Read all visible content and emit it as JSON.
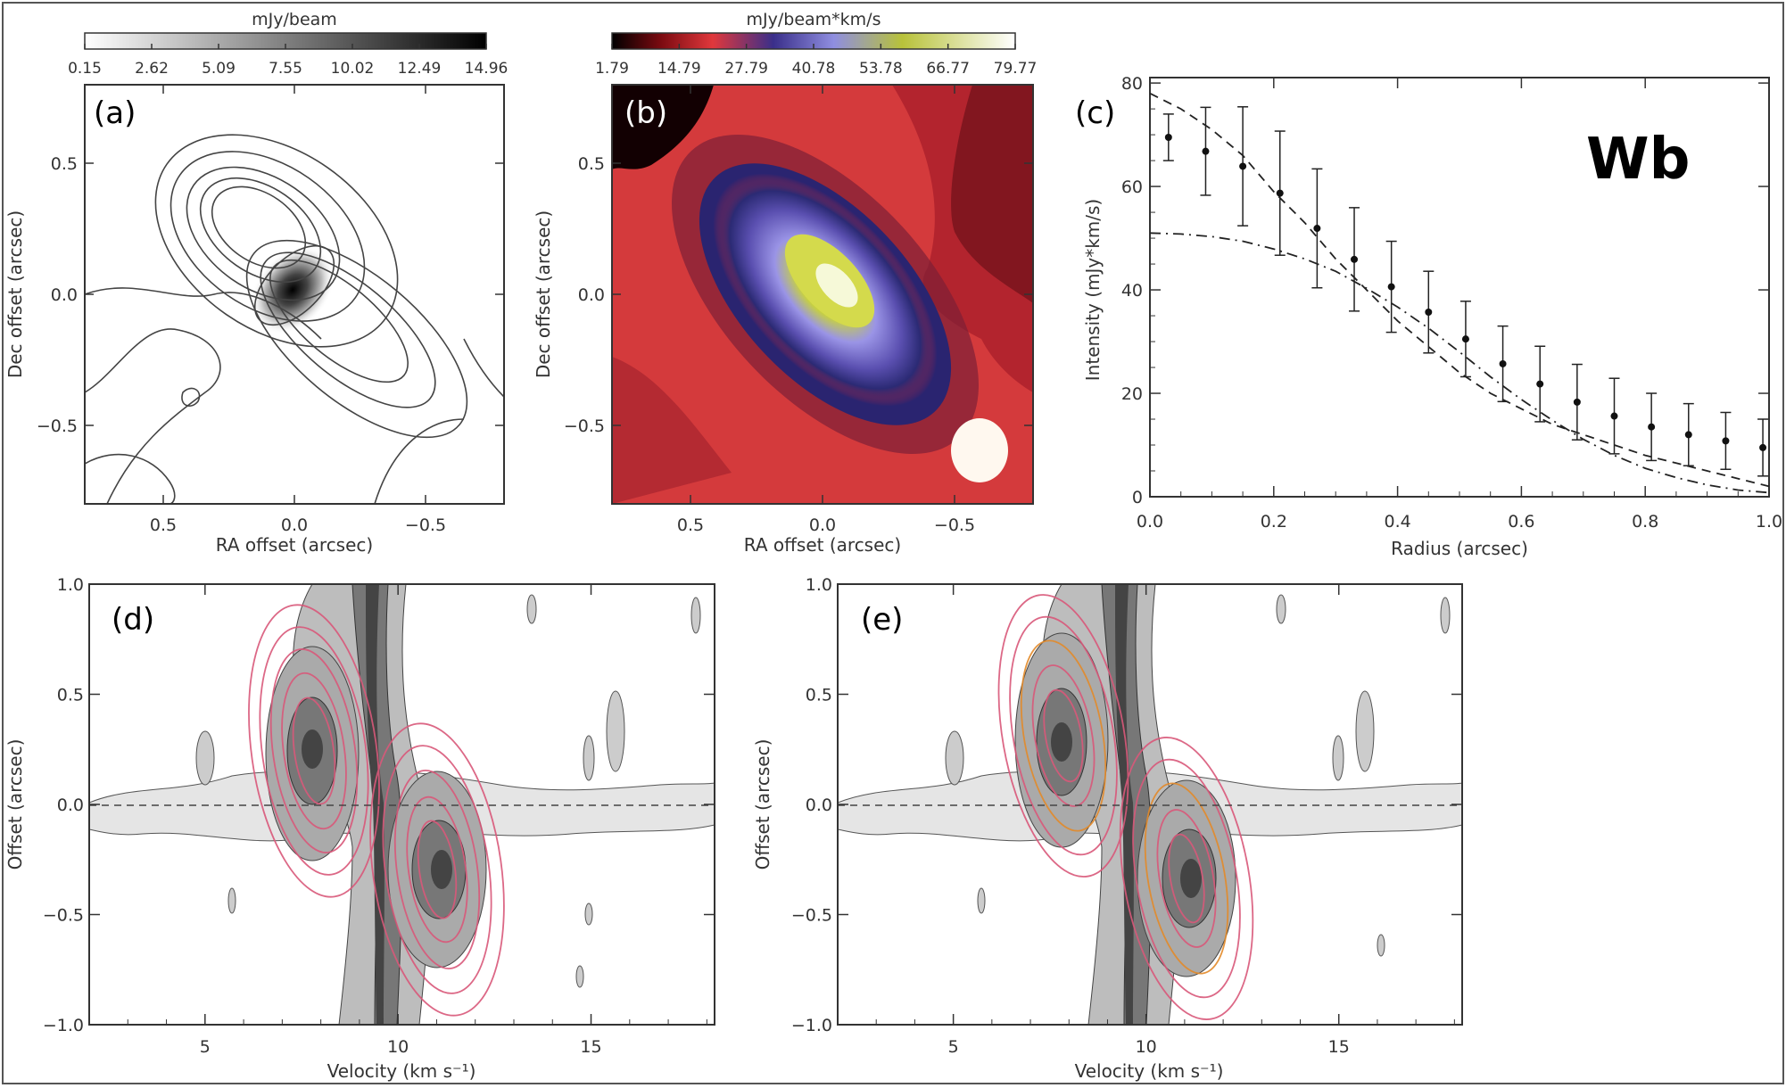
{
  "colorbars": {
    "a": {
      "title": "mJy/beam",
      "ticks": [
        "0.15",
        "2.62",
        "5.09",
        "7.55",
        "10.02",
        "12.49",
        "14.96"
      ]
    },
    "b": {
      "title": "mJy/beam*km/s",
      "ticks": [
        "1.79",
        "14.79",
        "27.79",
        "40.78",
        "53.78",
        "66.77",
        "79.77"
      ]
    }
  },
  "panels": {
    "a": {
      "label": "(a)",
      "xlabel": "RA offset (arcsec)",
      "ylabel": "Dec offset (arcsec)",
      "xticks": [
        "0.5",
        "0.0",
        "−0.5"
      ],
      "yticks": [
        "0.5",
        "0.0",
        "−0.5"
      ]
    },
    "b": {
      "label": "(b)",
      "xlabel": "RA offset (arcsec)",
      "ylabel": "Dec offset (arcsec)",
      "xticks": [
        "0.5",
        "0.0",
        "−0.5"
      ],
      "yticks": [
        "0.5",
        "0.0",
        "−0.5"
      ]
    },
    "c": {
      "label": "(c)",
      "name": "Wb",
      "xlabel": "Radius (arcsec)",
      "ylabel": "Intensity (mJy*km/s)",
      "xticks": [
        "0.0",
        "0.2",
        "0.4",
        "0.6",
        "0.8",
        "1.0"
      ],
      "yticks": [
        "0",
        "20",
        "40",
        "60",
        "80"
      ]
    },
    "d": {
      "label": "(d)",
      "xlabel": "Velocity (km s⁻¹)",
      "ylabel": "Offset (arcsec)",
      "xticks": [
        "5",
        "10",
        "15"
      ],
      "yticks": [
        "1.0",
        "0.5",
        "0.0",
        "−0.5",
        "−1.0"
      ]
    },
    "e": {
      "label": "(e)",
      "xlabel": "Velocity (km s⁻¹)",
      "ylabel": "Offset (arcsec)",
      "xticks": [
        "5",
        "10",
        "15"
      ],
      "yticks": [
        "1.0",
        "0.5",
        "0.0",
        "−0.5",
        "−1.0"
      ]
    }
  },
  "chart_data": {
    "type": "scatter",
    "panel": "c",
    "xlabel": "Radius (arcsec)",
    "ylabel": "Intensity (mJy*km/s)",
    "xlim": [
      0.0,
      1.0
    ],
    "ylim": [
      0,
      80
    ],
    "series": [
      {
        "x": [
          0.03,
          0.09,
          0.15,
          0.21,
          0.27,
          0.33,
          0.39,
          0.45,
          0.51,
          0.57,
          0.63,
          0.69,
          0.75,
          0.81,
          0.87,
          0.93,
          0.99
        ],
        "y": [
          69.5,
          66.8,
          63.9,
          58.7,
          51.9,
          45.9,
          40.6,
          35.7,
          30.5,
          25.7,
          21.8,
          18.3,
          15.6,
          13.5,
          12.0,
          10.8,
          9.5
        ],
        "err": [
          4.5,
          8.5,
          11.5,
          12.0,
          11.5,
          10.0,
          8.8,
          7.9,
          7.3,
          7.3,
          7.3,
          7.3,
          7.3,
          6.5,
          6.0,
          5.5,
          5.5
        ]
      },
      {
        "style": "dashed",
        "x": [
          0.0,
          0.05,
          0.1,
          0.15,
          0.2,
          0.25,
          0.3,
          0.35,
          0.4,
          0.45,
          0.5,
          0.55,
          0.6,
          0.65,
          0.7,
          0.75,
          0.8,
          0.85,
          0.9,
          0.95,
          1.0
        ],
        "y": [
          78,
          75,
          71,
          66,
          59,
          53,
          46,
          40,
          34,
          29,
          24,
          20,
          17,
          14,
          12,
          10,
          8,
          6.5,
          5,
          3.5,
          2
        ]
      },
      {
        "style": "dash-dot",
        "x": [
          0.0,
          0.05,
          0.1,
          0.15,
          0.2,
          0.25,
          0.3,
          0.35,
          0.4,
          0.45,
          0.5,
          0.55,
          0.6,
          0.65,
          0.7,
          0.75,
          0.8,
          0.85,
          0.9,
          0.95,
          1.0
        ],
        "y": [
          51,
          50.8,
          50.3,
          49.4,
          47.9,
          46,
          43.6,
          40.3,
          36.7,
          32.6,
          28,
          23.2,
          18.8,
          14.8,
          11.1,
          8,
          5.5,
          3.7,
          2.3,
          1.3,
          0.8
        ]
      }
    ]
  },
  "colors": {
    "frame": "#333333",
    "pink": "#d9587a",
    "orange": "#e38a2a"
  }
}
